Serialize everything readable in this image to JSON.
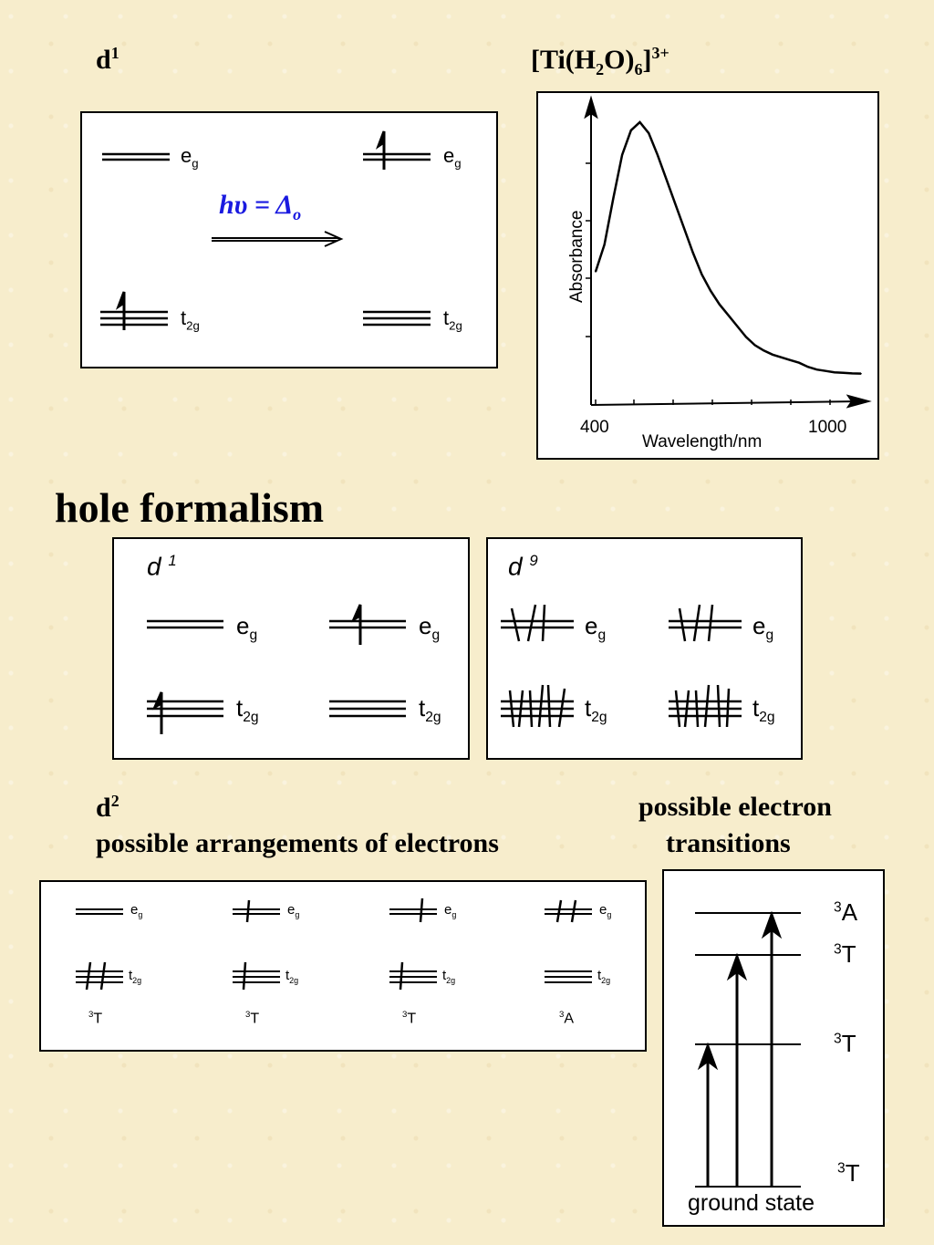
{
  "d1_section": {
    "label": "d",
    "label_sup": "1",
    "eg": "e",
    "eg_sub": "g",
    "t2g": "t",
    "t2g_sub": "2g",
    "equation": "hυ = Δ",
    "equation_sub": "o"
  },
  "spectrum": {
    "title_main": "[Ti(H",
    "title_sub1": "2",
    "title_mid": "O)",
    "title_sub2": "6",
    "title_end": "]",
    "title_sup": "3+",
    "ylabel": "Absorbance",
    "xlabel": "Wavelength/nm",
    "x_min_label": "400",
    "x_max_label": "1000"
  },
  "chart_data": {
    "type": "line",
    "title": "[Ti(H2O)6]3+",
    "xlabel": "Wavelength/nm",
    "ylabel": "Absorbance",
    "xlim": [
      400,
      1000
    ],
    "x": [
      400,
      420,
      440,
      460,
      480,
      500,
      520,
      540,
      560,
      580,
      600,
      620,
      640,
      660,
      680,
      700,
      720,
      740,
      760,
      780,
      800,
      820,
      840,
      860,
      880,
      900,
      920,
      940,
      960,
      980,
      1000
    ],
    "values": [
      0.45,
      0.55,
      0.72,
      0.88,
      0.97,
      1.0,
      0.96,
      0.88,
      0.79,
      0.7,
      0.61,
      0.52,
      0.44,
      0.38,
      0.33,
      0.29,
      0.25,
      0.21,
      0.18,
      0.16,
      0.145,
      0.135,
      0.125,
      0.115,
      0.1,
      0.09,
      0.085,
      0.08,
      0.078,
      0.076,
      0.075
    ]
  },
  "hole_section": {
    "title": "hole formalism",
    "d1_label": "d",
    "d1_sup": "1",
    "d9_label": "d",
    "d9_sup": "9",
    "eg": "e",
    "eg_sub": "g",
    "t2g": "t",
    "t2g_sub": "2g"
  },
  "d2_section": {
    "label": "d",
    "label_sup": "2",
    "subtitle": "possible arrangements of electrons",
    "eg": "e",
    "eg_sub": "g",
    "t2g": "t",
    "t2g_sub": "2g",
    "terms": [
      {
        "sup": "3",
        "letter": "T"
      },
      {
        "sup": "3",
        "letter": "T"
      },
      {
        "sup": "3",
        "letter": "T"
      },
      {
        "sup": "3",
        "letter": "A"
      }
    ]
  },
  "transitions": {
    "title_line1": "possible electron",
    "title_line2": "transitions",
    "levels": [
      {
        "sup": "3",
        "letter": "A"
      },
      {
        "sup": "3",
        "letter": "T"
      },
      {
        "sup": "3",
        "letter": "T"
      },
      {
        "sup": "3",
        "letter": "T"
      }
    ],
    "ground_label": "ground state"
  }
}
